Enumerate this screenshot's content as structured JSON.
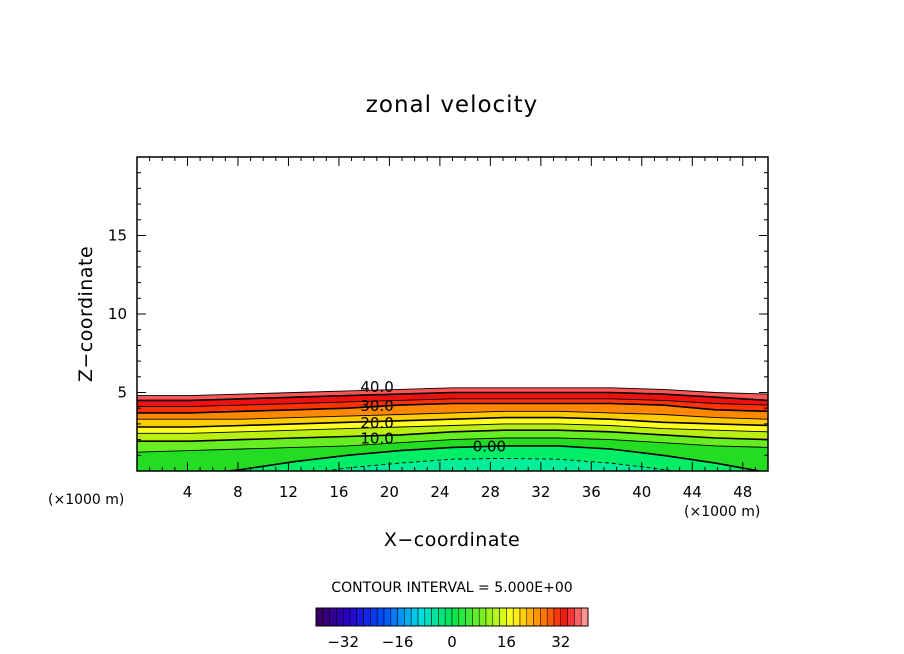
{
  "chart_data": {
    "type": "contour",
    "title": "zonal velocity",
    "xlabel": "X−coordinate",
    "ylabel": "Z−coordinate",
    "x_unit_left": "(×1000 m)",
    "x_unit_right": "(×1000 m)",
    "xlim": [
      0,
      50
    ],
    "ylim": [
      0,
      20
    ],
    "x_ticks": [
      4,
      8,
      12,
      16,
      20,
      24,
      28,
      32,
      36,
      40,
      44,
      48
    ],
    "y_ticks": [
      5,
      10,
      15
    ],
    "contour_interval_text": "CONTOUR INTERVAL = 5.000E+00",
    "contour_levels": [
      0,
      5,
      10,
      15,
      20,
      25,
      30,
      35,
      40,
      45
    ],
    "contour_labels": [
      {
        "text": "40.0",
        "x": 17.7,
        "z": 5.1
      },
      {
        "text": "30.0",
        "x": 17.7,
        "z": 3.9
      },
      {
        "text": "20.0",
        "x": 17.7,
        "z": 2.8
      },
      {
        "text": "10.0",
        "x": 17.7,
        "z": 1.8
      },
      {
        "text": "0.00",
        "x": 26.6,
        "z": 1.3
      }
    ],
    "level_profiles": [
      {
        "value": 0,
        "z": [
          -0.5,
          -0.3,
          0.1,
          0.6,
          1.0,
          1.3,
          1.5,
          1.6,
          1.6,
          1.4,
          1.0,
          0.5,
          -0.1
        ]
      },
      {
        "value": 5,
        "z": [
          1.2,
          1.3,
          1.4,
          1.5,
          1.6,
          1.8,
          2.0,
          2.1,
          2.1,
          2.0,
          1.8,
          1.6,
          1.5
        ]
      },
      {
        "value": 10,
        "z": [
          1.9,
          1.9,
          2.0,
          2.1,
          2.2,
          2.3,
          2.5,
          2.6,
          2.6,
          2.5,
          2.3,
          2.1,
          2.0
        ]
      },
      {
        "value": 15,
        "z": [
          2.4,
          2.4,
          2.5,
          2.6,
          2.7,
          2.8,
          2.9,
          3.0,
          3.0,
          2.9,
          2.7,
          2.6,
          2.5
        ]
      },
      {
        "value": 20,
        "z": [
          2.8,
          2.8,
          2.9,
          3.0,
          3.1,
          3.2,
          3.3,
          3.4,
          3.4,
          3.3,
          3.1,
          3.0,
          2.9
        ]
      },
      {
        "value": 25,
        "z": [
          3.3,
          3.3,
          3.3,
          3.4,
          3.5,
          3.6,
          3.7,
          3.8,
          3.8,
          3.7,
          3.6,
          3.4,
          3.3
        ]
      },
      {
        "value": 30,
        "z": [
          3.7,
          3.7,
          3.8,
          3.9,
          4.0,
          4.2,
          4.3,
          4.3,
          4.3,
          4.3,
          4.2,
          3.9,
          3.8
        ]
      },
      {
        "value": 35,
        "z": [
          4.1,
          4.1,
          4.2,
          4.3,
          4.4,
          4.5,
          4.6,
          4.6,
          4.6,
          4.6,
          4.5,
          4.3,
          4.2
        ]
      },
      {
        "value": 40,
        "z": [
          4.5,
          4.5,
          4.6,
          4.7,
          4.8,
          4.9,
          5.0,
          5.0,
          5.0,
          5.0,
          4.9,
          4.7,
          4.5
        ]
      },
      {
        "value": 45,
        "z": [
          4.8,
          4.8,
          4.9,
          5.0,
          5.1,
          5.2,
          5.3,
          5.3,
          5.3,
          5.3,
          5.2,
          5.0,
          4.9
        ]
      }
    ],
    "negative_dashed_profile": {
      "value": -5,
      "z": [
        -0.5,
        -0.5,
        -0.5,
        -0.3,
        0.2,
        0.5,
        0.75,
        0.8,
        0.75,
        0.5,
        0.1,
        -0.4,
        -0.5
      ]
    },
    "fill_bands": [
      {
        "min": -10,
        "max": 0,
        "color": "#00ee66"
      },
      {
        "min": 0,
        "max": 5,
        "color": "#22dd22"
      },
      {
        "min": 5,
        "max": 10,
        "color": "#66ee22"
      },
      {
        "min": 10,
        "max": 15,
        "color": "#bbee11"
      },
      {
        "min": 15,
        "max": 20,
        "color": "#ffff22"
      },
      {
        "min": 20,
        "max": 25,
        "color": "#ffcc00"
      },
      {
        "min": 25,
        "max": 30,
        "color": "#ff8800"
      },
      {
        "min": 30,
        "max": 35,
        "color": "#ff3300"
      },
      {
        "min": 35,
        "max": 40,
        "color": "#ee1111"
      },
      {
        "min": 40,
        "max": 45,
        "color": "#ff5555"
      },
      {
        "min": 45,
        "max": 50,
        "color": "#ff9999"
      }
    ],
    "colorbar": {
      "min": -40,
      "max": 40,
      "segments": 40,
      "tick_labels": [
        "−32",
        "−16",
        "0",
        "16",
        "32"
      ],
      "tick_values": [
        -32,
        -16,
        0,
        16,
        32
      ]
    }
  }
}
